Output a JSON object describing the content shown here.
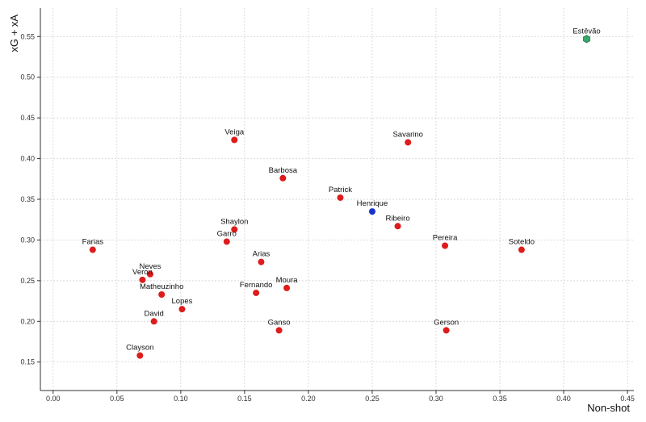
{
  "chart_data": {
    "type": "scatter",
    "xlabel": "Non-shot",
    "ylabel": "xG + xA",
    "xlim": [
      -0.01,
      0.455
    ],
    "ylim": [
      0.115,
      0.585
    ],
    "grid": true,
    "x_ticks": [
      0.0,
      0.05,
      0.1,
      0.15,
      0.2,
      0.25,
      0.3,
      0.35,
      0.4,
      0.45
    ],
    "x_tick_labels": [
      "0.00",
      "0.05",
      "0.10",
      "0.15",
      "0.20",
      "0.25",
      "0.30",
      "0.35",
      "0.40",
      "0.45"
    ],
    "y_ticks": [
      0.15,
      0.2,
      0.25,
      0.3,
      0.35,
      0.4,
      0.45,
      0.5,
      0.55
    ],
    "y_tick_labels": [
      "0.15",
      "0.20",
      "0.25",
      "0.30",
      "0.35",
      "0.40",
      "0.45",
      "0.50",
      "0.55"
    ],
    "colors": {
      "default": "#dd1c1c",
      "blue": "#1533c9",
      "highlight": "#38a86b"
    },
    "points": [
      {
        "name": "Estêvão",
        "x": 0.418,
        "y": 0.547,
        "color": "highlight",
        "shape": "hexagon"
      },
      {
        "name": "Veiga",
        "x": 0.142,
        "y": 0.423,
        "color": "default"
      },
      {
        "name": "Savarino",
        "x": 0.278,
        "y": 0.42,
        "color": "default"
      },
      {
        "name": "Barbosa",
        "x": 0.18,
        "y": 0.376,
        "color": "default"
      },
      {
        "name": "Patrick",
        "x": 0.225,
        "y": 0.352,
        "color": "default"
      },
      {
        "name": "Henrique",
        "x": 0.25,
        "y": 0.335,
        "color": "blue"
      },
      {
        "name": "Ribeiro",
        "x": 0.27,
        "y": 0.317,
        "color": "default"
      },
      {
        "name": "Shaylon",
        "x": 0.142,
        "y": 0.313,
        "color": "default"
      },
      {
        "name": "Garro",
        "x": 0.136,
        "y": 0.298,
        "color": "default"
      },
      {
        "name": "Pereira",
        "x": 0.307,
        "y": 0.293,
        "color": "default"
      },
      {
        "name": "Soteldo",
        "x": 0.367,
        "y": 0.288,
        "color": "default"
      },
      {
        "name": "Farias",
        "x": 0.031,
        "y": 0.288,
        "color": "default"
      },
      {
        "name": "Arias",
        "x": 0.163,
        "y": 0.273,
        "color": "default"
      },
      {
        "name": "Neves",
        "x": 0.076,
        "y": 0.258,
        "color": "default"
      },
      {
        "name": "Veron",
        "x": 0.07,
        "y": 0.251,
        "color": "default"
      },
      {
        "name": "Moura",
        "x": 0.183,
        "y": 0.241,
        "color": "default"
      },
      {
        "name": "Fernando",
        "x": 0.159,
        "y": 0.235,
        "color": "default"
      },
      {
        "name": "Matheuzinho",
        "x": 0.085,
        "y": 0.233,
        "color": "default"
      },
      {
        "name": "Lopes",
        "x": 0.101,
        "y": 0.215,
        "color": "default"
      },
      {
        "name": "David",
        "x": 0.079,
        "y": 0.2,
        "color": "default"
      },
      {
        "name": "Ganso",
        "x": 0.177,
        "y": 0.189,
        "color": "default"
      },
      {
        "name": "Gerson",
        "x": 0.308,
        "y": 0.189,
        "color": "default"
      },
      {
        "name": "Clayson",
        "x": 0.068,
        "y": 0.158,
        "color": "default"
      }
    ]
  }
}
